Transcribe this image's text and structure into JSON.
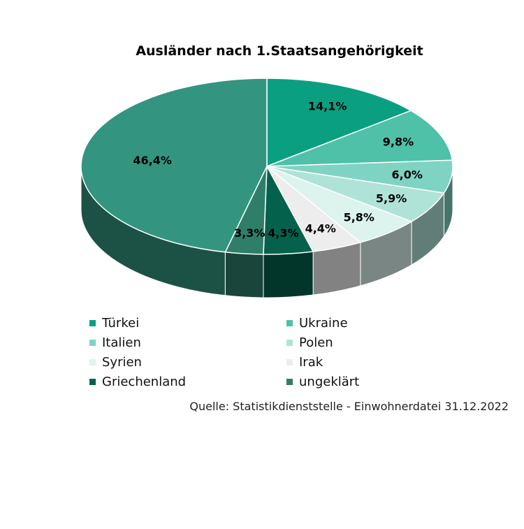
{
  "chart_data": {
    "type": "pie",
    "title": "Ausländer nach 1.Staatsangehörigkeit",
    "slices": [
      {
        "name": "Türkei",
        "value": 14.1,
        "label": "14,1%",
        "color": "#0b9f82"
      },
      {
        "name": "Ukraine",
        "value": 9.8,
        "label": "9,8%",
        "color": "#4ec1a8"
      },
      {
        "name": "Italien",
        "value": 6.0,
        "label": "6,0%",
        "color": "#7fd3c2"
      },
      {
        "name": "Polen",
        "value": 5.9,
        "label": "5,9%",
        "color": "#b0e3d8"
      },
      {
        "name": "Syrien",
        "value": 5.8,
        "label": "5,8%",
        "color": "#dcf3ee"
      },
      {
        "name": "Irak",
        "value": 4.4,
        "label": "4,4%",
        "color": "#ededed"
      },
      {
        "name": "Griechenland",
        "value": 4.3,
        "label": "4,3%",
        "color": "#04624c"
      },
      {
        "name": "ungeklärt",
        "value": 3.3,
        "label": "3,3%",
        "color": "#2f7e6a"
      },
      {
        "name": "",
        "value": 46.4,
        "label": "46,4%",
        "color": "#33957f"
      }
    ],
    "legend_position": "bottom"
  },
  "legend": [
    {
      "name": "Türkei",
      "color": "#0b9f82"
    },
    {
      "name": "Ukraine",
      "color": "#4ec1a8"
    },
    {
      "name": "Italien",
      "color": "#7fd3c2"
    },
    {
      "name": "Polen",
      "color": "#b0e3d8"
    },
    {
      "name": "Syrien",
      "color": "#dcf3ee"
    },
    {
      "name": "Irak",
      "color": "#ededed"
    },
    {
      "name": "Griechenland",
      "color": "#04624c"
    },
    {
      "name": "ungeklärt",
      "color": "#2f7e6a"
    }
  ],
  "source": "Quelle: Statistikdienststelle - Einwohnerdatei 31.12.2022"
}
